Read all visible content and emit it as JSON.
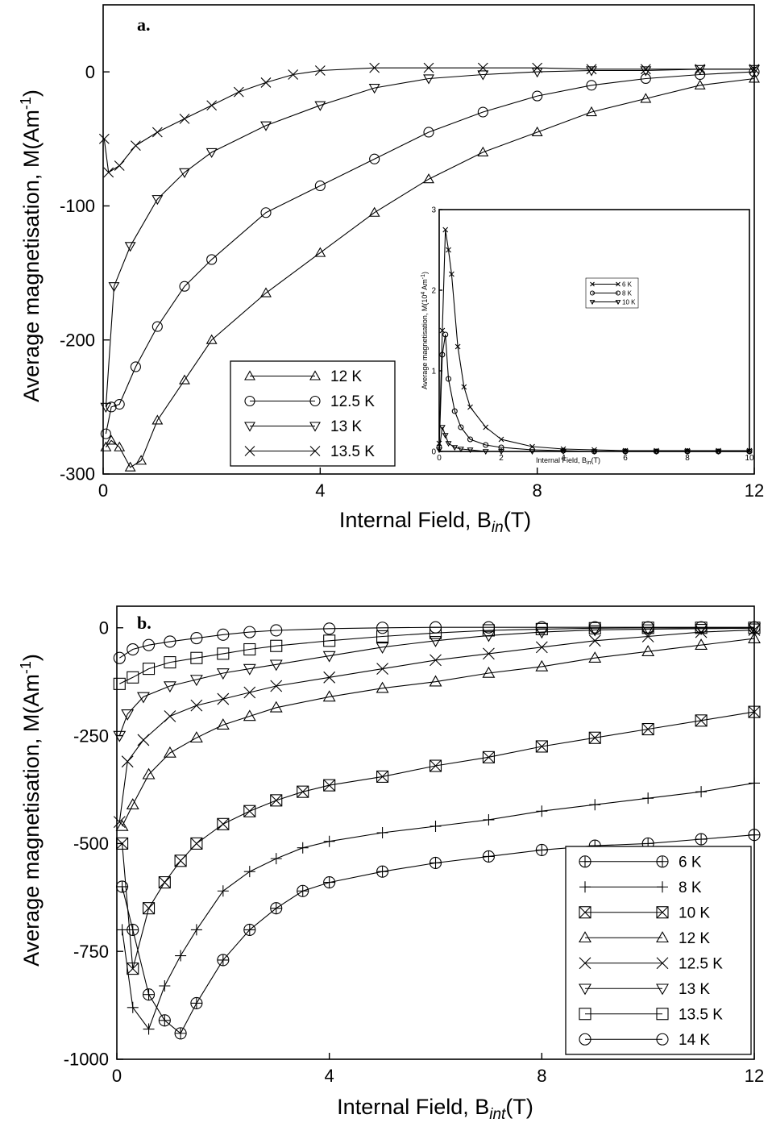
{
  "chart_data": [
    {
      "type": "line",
      "panel_label": "a.",
      "xlabel": "Internal Field, B",
      "xlabel_sub": "in",
      "xlabel_unit": "(T)",
      "ylabel": "Average magnetisation, M(Am",
      "ylabel_sup": "-1",
      "ylabel_end": ")",
      "xlim": [
        0,
        12
      ],
      "ylim": [
        -300,
        50
      ],
      "xticks": [
        "0",
        "4",
        "8",
        "12"
      ],
      "yticks": [
        "0",
        "-100",
        "-200",
        "-300"
      ],
      "legend_placement": "bottom-center",
      "series": [
        {
          "name": "12 K",
          "marker": "triangle-up",
          "x": [
            0.05,
            0.15,
            0.3,
            0.5,
            0.7,
            1.0,
            1.5,
            2.0,
            3.0,
            4.0,
            5.0,
            6.0,
            7.0,
            8.0,
            9.0,
            10.0,
            11.0,
            12.0
          ],
          "y": [
            -280,
            -275,
            -280,
            -295,
            -290,
            -260,
            -230,
            -200,
            -165,
            -135,
            -105,
            -80,
            -60,
            -45,
            -30,
            -20,
            -10,
            -5
          ]
        },
        {
          "name": "12.5 K",
          "marker": "circle",
          "x": [
            0.05,
            0.15,
            0.3,
            0.6,
            1.0,
            1.5,
            2.0,
            3.0,
            4.0,
            5.0,
            6.0,
            7.0,
            8.0,
            9.0,
            10.0,
            11.0,
            12.0
          ],
          "y": [
            -270,
            -250,
            -248,
            -220,
            -190,
            -160,
            -140,
            -105,
            -85,
            -65,
            -45,
            -30,
            -18,
            -10,
            -5,
            -2,
            0
          ]
        },
        {
          "name": "13 K",
          "marker": "triangle-down",
          "x": [
            0.05,
            0.2,
            0.5,
            1.0,
            1.5,
            2.0,
            3.0,
            4.0,
            5.0,
            6.0,
            7.0,
            8.0,
            9.0,
            10.0,
            11.0,
            12.0
          ],
          "y": [
            -250,
            -160,
            -130,
            -95,
            -75,
            -60,
            -40,
            -25,
            -12,
            -5,
            -2,
            0,
            1,
            1,
            2,
            2
          ]
        },
        {
          "name": "13.5 K",
          "marker": "x",
          "x": [
            0.02,
            0.1,
            0.3,
            0.6,
            1.0,
            1.5,
            2.0,
            2.5,
            3.0,
            3.5,
            4.0,
            5.0,
            6.0,
            7.0,
            8.0,
            9.0,
            10.0,
            11.0,
            12.0
          ],
          "y": [
            -50,
            -75,
            -70,
            -55,
            -45,
            -35,
            -25,
            -15,
            -8,
            -2,
            1,
            3,
            3,
            3,
            3,
            2,
            2,
            2,
            2
          ]
        }
      ],
      "inset": {
        "type": "line",
        "xlabel": "Internal Field, B",
        "xlabel_sub": "in",
        "xlabel_unit": "(T)",
        "ylabel": "Average magnetisation, M(10",
        "ylabel_sup": "4",
        "ylabel_end": " Am",
        "ylabel_sup2": "-1",
        "ylabel_close": ")",
        "xlim": [
          0,
          10
        ],
        "ylim": [
          0,
          3
        ],
        "xticks": [
          "0",
          "2",
          "4",
          "6",
          "8",
          "10"
        ],
        "yticks": [
          "0",
          "1",
          "2",
          "3"
        ],
        "legend_placement": "center",
        "series": [
          {
            "name": "6 K",
            "marker": "x",
            "x": [
              0,
              0.1,
              0.2,
              0.3,
              0.4,
              0.6,
              0.8,
              1.0,
              1.5,
              2.0,
              3.0,
              4.0,
              5.0,
              6.0,
              7.0,
              8.0,
              9.0,
              10.0
            ],
            "y": [
              0.1,
              1.5,
              2.75,
              2.5,
              2.2,
              1.3,
              0.8,
              0.55,
              0.3,
              0.15,
              0.06,
              0.03,
              0.02,
              0.01,
              0.01,
              0.01,
              0.01,
              0.01
            ]
          },
          {
            "name": "8 K",
            "marker": "circle",
            "x": [
              0,
              0.1,
              0.2,
              0.3,
              0.5,
              0.7,
              1.0,
              1.5,
              2.0,
              3.0,
              4.0,
              5.0,
              6.0,
              7.0,
              8.0,
              9.0,
              10.0
            ],
            "y": [
              0.05,
              1.2,
              1.45,
              0.9,
              0.5,
              0.3,
              0.15,
              0.08,
              0.05,
              0.02,
              0.01,
              0.0,
              0.0,
              0.0,
              0.0,
              0.0,
              0.0
            ]
          },
          {
            "name": "10 K",
            "marker": "triangle-down",
            "x": [
              0,
              0.1,
              0.2,
              0.3,
              0.5,
              0.7,
              1.0,
              1.5,
              2.0,
              3.0,
              4.0,
              5.0,
              6.0,
              7.0,
              8.0,
              9.0,
              10.0
            ],
            "y": [
              0.02,
              0.3,
              0.2,
              0.1,
              0.05,
              0.03,
              0.02,
              0.0,
              0.0,
              0.0,
              0.0,
              0.0,
              0.0,
              0.0,
              0.0,
              0.0,
              0.0
            ]
          }
        ]
      }
    },
    {
      "type": "line",
      "panel_label": "b.",
      "xlabel": "Internal Field, B",
      "xlabel_sub": "int",
      "xlabel_unit": "(T)",
      "ylabel": "Average magnetisation, M(Am",
      "ylabel_sup": "-1",
      "ylabel_end": ")",
      "xlim": [
        0,
        12
      ],
      "ylim": [
        -1000,
        50
      ],
      "xticks": [
        "0",
        "4",
        "8",
        "12"
      ],
      "yticks": [
        "0",
        "-250",
        "-500",
        "-750",
        "-1000"
      ],
      "legend_placement": "bottom-right",
      "series": [
        {
          "name": "6 K",
          "marker": "circle-plus",
          "x": [
            0.1,
            0.3,
            0.6,
            0.9,
            1.2,
            1.5,
            2.0,
            2.5,
            3.0,
            3.5,
            4.0,
            5.0,
            6.0,
            7.0,
            8.0,
            9.0,
            10.0,
            11.0,
            12.0
          ],
          "y": [
            -600,
            -700,
            -850,
            -910,
            -940,
            -870,
            -770,
            -700,
            -650,
            -610,
            -590,
            -565,
            -545,
            -530,
            -515,
            -505,
            -500,
            -490,
            -480
          ]
        },
        {
          "name": "8 K",
          "marker": "plus",
          "x": [
            0.1,
            0.3,
            0.6,
            0.9,
            1.2,
            1.5,
            2.0,
            2.5,
            3.0,
            3.5,
            4.0,
            5.0,
            6.0,
            7.0,
            8.0,
            9.0,
            10.0,
            11.0,
            12.0
          ],
          "y": [
            -700,
            -880,
            -930,
            -830,
            -760,
            -700,
            -610,
            -565,
            -535,
            -510,
            -495,
            -475,
            -460,
            -445,
            -425,
            -410,
            -395,
            -380,
            -360
          ]
        },
        {
          "name": "10 K",
          "marker": "box-x",
          "x": [
            0.1,
            0.3,
            0.6,
            0.9,
            1.2,
            1.5,
            2.0,
            2.5,
            3.0,
            3.5,
            4.0,
            5.0,
            6.0,
            7.0,
            8.0,
            9.0,
            10.0,
            11.0,
            12.0
          ],
          "y": [
            -500,
            -790,
            -650,
            -590,
            -540,
            -500,
            -455,
            -425,
            -400,
            -380,
            -365,
            -345,
            -320,
            -300,
            -275,
            -255,
            -235,
            -215,
            -195
          ]
        },
        {
          "name": "12 K",
          "marker": "triangle-up",
          "x": [
            0.1,
            0.3,
            0.6,
            1.0,
            1.5,
            2.0,
            2.5,
            3.0,
            4.0,
            5.0,
            6.0,
            7.0,
            8.0,
            9.0,
            10.0,
            11.0,
            12.0
          ],
          "y": [
            -460,
            -410,
            -340,
            -290,
            -255,
            -225,
            -205,
            -185,
            -160,
            -140,
            -125,
            -105,
            -90,
            -70,
            -55,
            -40,
            -25
          ]
        },
        {
          "name": "12.5 K",
          "marker": "x",
          "x": [
            0.05,
            0.2,
            0.5,
            1.0,
            1.5,
            2.0,
            2.5,
            3.0,
            4.0,
            5.0,
            6.0,
            7.0,
            8.0,
            9.0,
            10.0,
            11.0,
            12.0
          ],
          "y": [
            -450,
            -310,
            -260,
            -205,
            -180,
            -165,
            -150,
            -135,
            -115,
            -95,
            -75,
            -60,
            -45,
            -30,
            -20,
            -10,
            -5
          ]
        },
        {
          "name": "13 K",
          "marker": "triangle-down",
          "x": [
            0.05,
            0.2,
            0.5,
            1.0,
            1.5,
            2.0,
            2.5,
            3.0,
            4.0,
            5.0,
            6.0,
            7.0,
            8.0,
            9.0,
            10.0,
            11.0,
            12.0
          ],
          "y": [
            -250,
            -200,
            -160,
            -135,
            -120,
            -105,
            -95,
            -85,
            -65,
            -45,
            -30,
            -18,
            -10,
            -5,
            -3,
            -2,
            -1
          ]
        },
        {
          "name": "13.5 K",
          "marker": "square",
          "x": [
            0.05,
            0.3,
            0.6,
            1.0,
            1.5,
            2.0,
            2.5,
            3.0,
            4.0,
            5.0,
            6.0,
            7.0,
            8.0,
            9.0,
            10.0,
            11.0,
            12.0
          ],
          "y": [
            -130,
            -115,
            -95,
            -80,
            -70,
            -60,
            -50,
            -42,
            -30,
            -20,
            -12,
            -6,
            -3,
            -1,
            0,
            0,
            0
          ]
        },
        {
          "name": "14 K",
          "marker": "circle",
          "x": [
            0.05,
            0.3,
            0.6,
            1.0,
            1.5,
            2.0,
            2.5,
            3.0,
            4.0,
            5.0,
            6.0,
            7.0,
            8.0,
            9.0,
            10.0,
            11.0,
            12.0
          ],
          "y": [
            -70,
            -50,
            -40,
            -32,
            -24,
            -16,
            -10,
            -6,
            -2,
            0,
            1,
            1,
            1,
            1,
            1,
            1,
            1
          ]
        }
      ]
    }
  ]
}
